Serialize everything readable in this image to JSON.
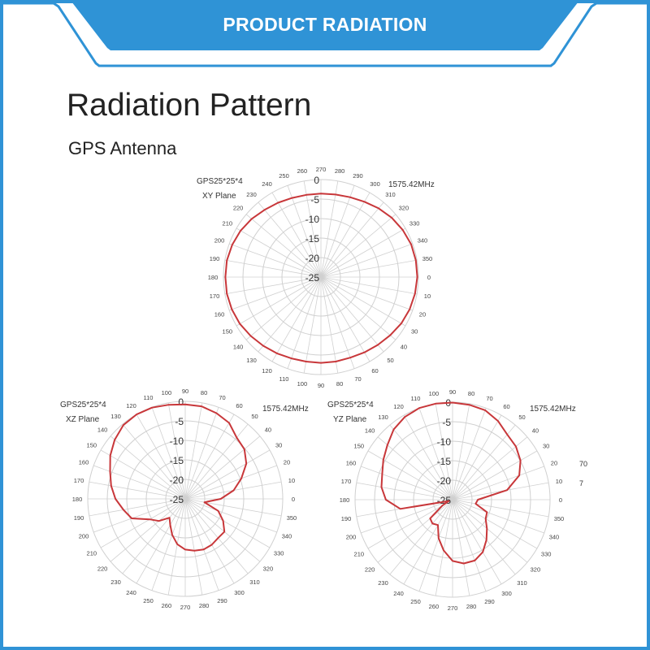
{
  "header": {
    "banner_title": "PRODUCT RADIATION"
  },
  "page": {
    "title": "Radiation Pattern",
    "subtitle": "GPS Antenna"
  },
  "colors": {
    "brand_blue": "#2f93d6",
    "curve": "#c8373a",
    "grid": "#d0d0d0"
  },
  "stray_text": [
    "70",
    "7"
  ],
  "chart_data": [
    {
      "type": "polar",
      "model": "GPS25*25*4",
      "plane": "XY Plane",
      "frequency": "1575.42MHz",
      "direction": "clockwise",
      "zero_angle": "right",
      "radial_ticks": [
        "0",
        "-5",
        "-10",
        "-15",
        "-20",
        "-25"
      ],
      "rlim": [
        -25,
        0
      ],
      "angles": [
        0,
        10,
        20,
        30,
        40,
        50,
        60,
        70,
        80,
        90,
        100,
        110,
        120,
        130,
        140,
        150,
        160,
        170,
        180,
        190,
        200,
        210,
        220,
        230,
        240,
        250,
        260,
        270,
        280,
        290,
        300,
        310,
        320,
        330,
        340,
        350
      ],
      "values": [
        -0.3,
        -0.5,
        -0.8,
        -1.2,
        -1.8,
        -2.3,
        -2.7,
        -3,
        -3,
        -3,
        -3,
        -2.8,
        -2.4,
        -2,
        -1.5,
        -1,
        -0.7,
        -0.5,
        -0.5,
        -0.5,
        -0.8,
        -1.2,
        -1.8,
        -2.5,
        -3,
        -3.4,
        -3.6,
        -3.6,
        -3.5,
        -3.2,
        -2.7,
        -2,
        -1.3,
        -0.8,
        -0.4,
        -0.3
      ]
    },
    {
      "type": "polar",
      "model": "GPS25*25*4",
      "plane": "XZ Plane",
      "frequency": "1575.42MHz",
      "direction": "counterclockwise",
      "zero_angle": "right",
      "radial_ticks": [
        "0",
        "-5",
        "-10",
        "-15",
        "-20",
        "-25"
      ],
      "rlim": [
        -25,
        0
      ],
      "angles": [
        0,
        10,
        20,
        30,
        40,
        50,
        60,
        70,
        80,
        90,
        100,
        110,
        120,
        130,
        140,
        150,
        160,
        170,
        180,
        190,
        200,
        210,
        220,
        230,
        240,
        250,
        260,
        270,
        280,
        290,
        300,
        310,
        320,
        330,
        340,
        350
      ],
      "values": [
        -15.9,
        -12.4,
        -9.7,
        -6.9,
        -5.2,
        -4.5,
        -2.5,
        -1.6,
        -0.9,
        -0.8,
        -0.5,
        -0.1,
        0,
        -0.3,
        -1.4,
        -2.8,
        -4.5,
        -5.7,
        -7.1,
        -8.9,
        -10.4,
        -14.5,
        -16.2,
        -18.7,
        -17.3,
        -15.2,
        -13.2,
        -12,
        -11.5,
        -11.2,
        -11.4,
        -11.9,
        -11.9,
        -13.8,
        -16,
        -20
      ]
    },
    {
      "type": "polar",
      "model": "GPS25*25*4",
      "plane": "YZ Plane",
      "frequency": "1575.42MHz",
      "direction": "counterclockwise",
      "zero_angle": "right",
      "radial_ticks": [
        "0",
        "-5",
        "-10",
        "-15",
        "-20",
        "-25"
      ],
      "rlim": [
        -25,
        0
      ],
      "angles": [
        0,
        10,
        20,
        30,
        40,
        50,
        60,
        70,
        80,
        90,
        100,
        110,
        120,
        130,
        140,
        150,
        160,
        170,
        180,
        190,
        200,
        210,
        220,
        230,
        240,
        250,
        260,
        270,
        280,
        290,
        300,
        310,
        320,
        330,
        340,
        350
      ],
      "values": [
        -18.5,
        -10.8,
        -6.8,
        -4.9,
        -3.8,
        -3.2,
        -1.7,
        -0.6,
        -0.3,
        -0.1,
        0,
        0,
        -0.5,
        -1.5,
        -3.2,
        -4.5,
        -5.8,
        -6.5,
        -7.9,
        -11.4,
        -24,
        -22,
        -17.5,
        -17,
        -17.5,
        -14.5,
        -11.8,
        -9.3,
        -8.4,
        -8.4,
        -9.5,
        -11.5,
        -13.5,
        -15.2,
        -15.6,
        -19
      ]
    }
  ]
}
